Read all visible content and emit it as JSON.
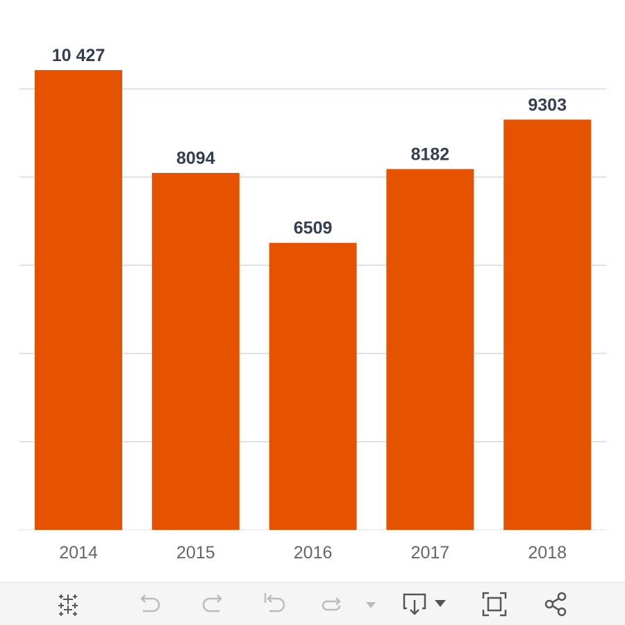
{
  "chart_data": {
    "type": "bar",
    "categories": [
      "2014",
      "2015",
      "2016",
      "2017",
      "2018"
    ],
    "values": [
      10427,
      8094,
      6509,
      8182,
      9303
    ],
    "value_labels": [
      "10 427",
      "8094",
      "6509",
      "8182",
      "9303"
    ],
    "ylim": [
      0,
      10000
    ],
    "gridlines": [
      0,
      2000,
      4000,
      6000,
      8000,
      10000
    ],
    "grid": true,
    "legend": "none",
    "colors": {
      "bar": "#e55300",
      "grid": "#dbe4ee",
      "label": "#333f50",
      "tick": "#666666"
    }
  },
  "toolbar": {
    "items": [
      {
        "name": "tableau-logo-icon",
        "enabled": true
      },
      {
        "name": "undo-icon",
        "enabled": false
      },
      {
        "name": "redo-icon",
        "enabled": false
      },
      {
        "name": "revert-icon",
        "enabled": false
      },
      {
        "name": "refresh-icon",
        "enabled": false
      },
      {
        "name": "pause-dropdown-icon",
        "enabled": false
      },
      {
        "name": "download-icon",
        "enabled": true
      },
      {
        "name": "fullscreen-icon",
        "enabled": true
      },
      {
        "name": "share-icon",
        "enabled": true
      }
    ]
  }
}
